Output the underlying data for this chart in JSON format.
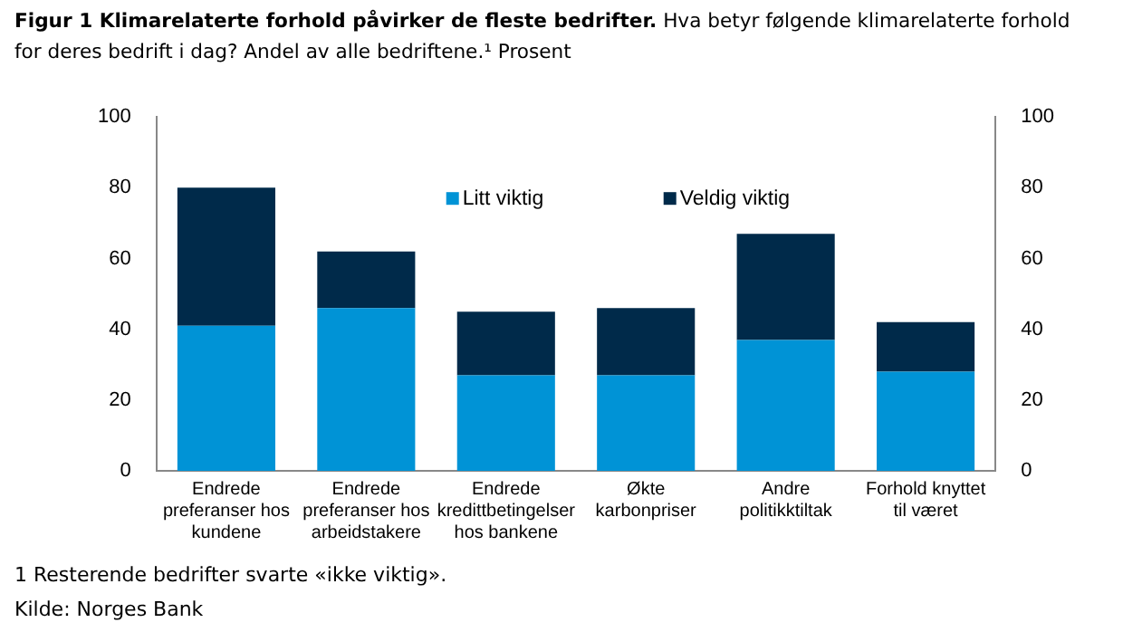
{
  "chart_data": {
    "type": "bar",
    "title": "Figur 1 Klimarelaterte forhold påvirker de fleste bedrifter.",
    "subtitle": "Hva betyr følgende klimarelaterte forhold for deres bedrift i dag? Andel av alle bedriftene.¹ Prosent",
    "categories": [
      "Endrede preferanser hos kundene",
      "Endrede preferanser hos arbeidstakere",
      "Endrede kredittbetingelser hos bankene",
      "Økte karbonpriser",
      "Andre politikktiltak",
      "Forhold knyttet til været"
    ],
    "stacked": true,
    "series": [
      {
        "name": "Litt viktig",
        "color": "#0093d6",
        "values": [
          41,
          46,
          27,
          27,
          37,
          28
        ]
      },
      {
        "name": "Veldig viktig",
        "color": "#002a4a",
        "values": [
          39,
          16,
          18,
          19,
          30,
          14
        ]
      }
    ],
    "ylim": [
      0,
      100
    ],
    "yticks": [
      0,
      20,
      40,
      60,
      80,
      100
    ],
    "y2lim": [
      0,
      100
    ],
    "y2ticks": [
      0,
      20,
      40,
      60,
      80,
      100
    ],
    "grid": false,
    "legend": "top",
    "annotations": [
      "1 Resterende bedrifter svarte «ikke viktig».",
      "Kilde: Norges Bank"
    ]
  }
}
